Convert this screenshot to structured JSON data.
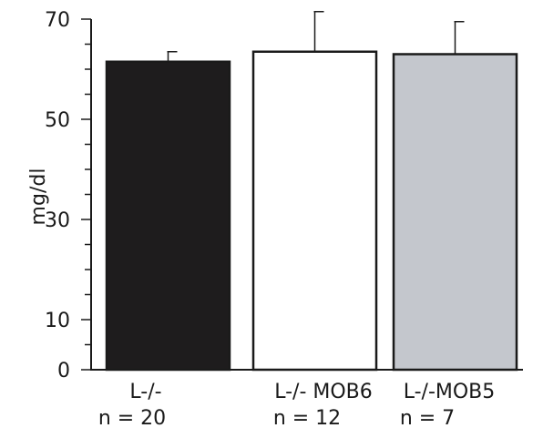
{
  "chart_data": {
    "type": "bar",
    "title": "",
    "xlabel": "",
    "ylabel": "mg/dl",
    "ylim": [
      0,
      70
    ],
    "yticks_labeled": [
      0,
      10,
      30,
      50,
      70
    ],
    "yticks_minor_step": 5,
    "grid": false,
    "legend": "none",
    "categories": [
      {
        "name": "L-/-",
        "n_label": "n = 20"
      },
      {
        "name": "L-/- MOB6",
        "n_label": "n = 12"
      },
      {
        "name": "L-/-MOB5",
        "n_label": "n = 7"
      }
    ],
    "values": [
      61.5,
      63.5,
      63
    ],
    "error_upper": [
      63.5,
      71.5,
      69.5
    ],
    "bar_colors": [
      "#1e1c1d",
      "#ffffff",
      "#c4c7cd"
    ],
    "bar_edge_color": "#1a1a1a"
  }
}
